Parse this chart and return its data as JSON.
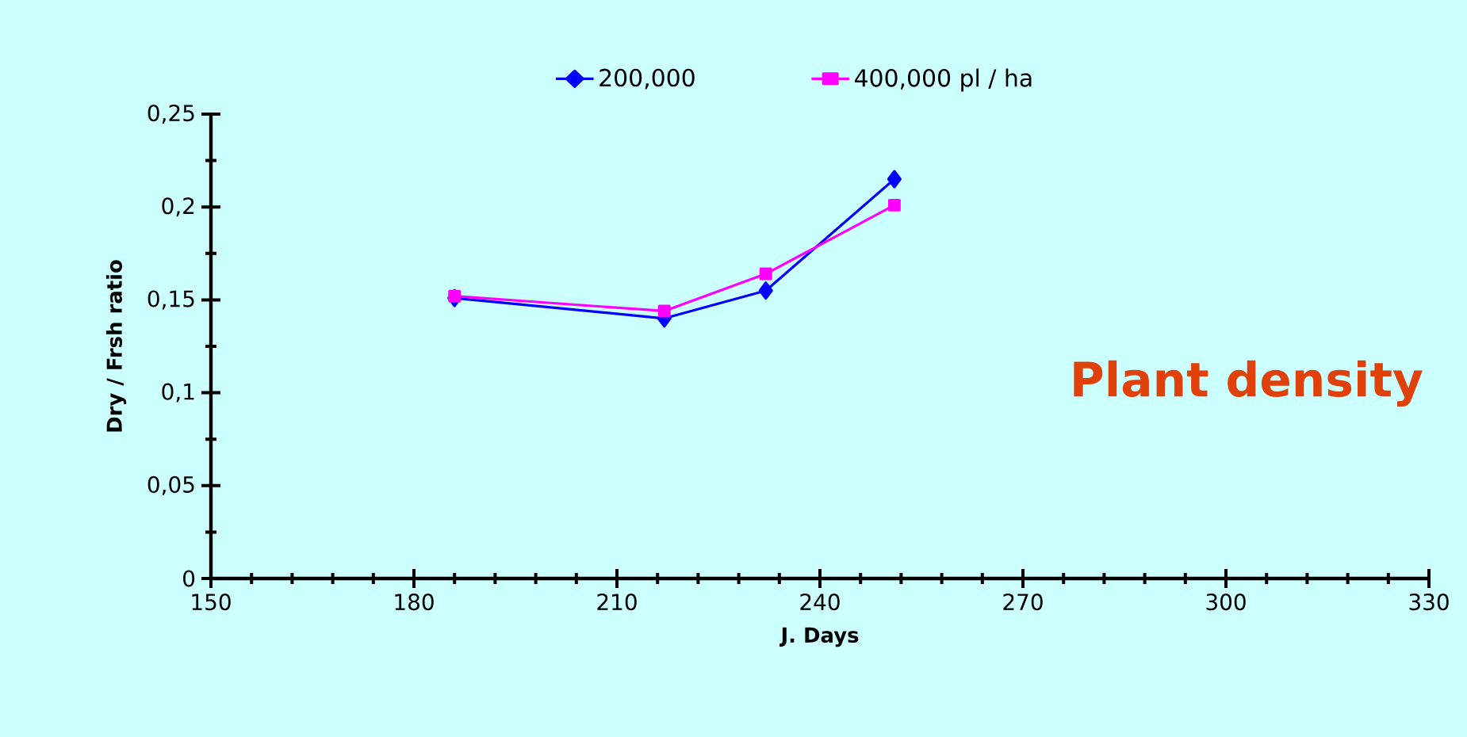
{
  "chart_data": {
    "type": "line",
    "xlabel": "J. Days",
    "ylabel": "Dry / Frsh ratio",
    "x": [
      186,
      217,
      232,
      251
    ],
    "series": [
      {
        "name": "200,000",
        "color": "#0000ff",
        "marker": "diamond",
        "values": [
          0.151,
          0.14,
          0.155,
          0.215
        ]
      },
      {
        "name": "400,000 pl / ha",
        "color": "#ff00ff",
        "marker": "square",
        "values": [
          0.152,
          0.144,
          0.164,
          0.201
        ]
      }
    ],
    "xlim": [
      150,
      330
    ],
    "xticks": [
      150,
      180,
      210,
      240,
      270,
      300,
      330
    ],
    "ylim": [
      0,
      0.25
    ],
    "yticks": [
      0,
      {
        "value": 0.05,
        "label": "0,05"
      },
      {
        "value": 0.1,
        "label": "0,1"
      },
      {
        "value": 0.15,
        "label": "0,15"
      },
      {
        "value": 0.2,
        "label": "0,2"
      },
      {
        "value": 0.25,
        "label": "0,25"
      }
    ],
    "annotations": [
      "Plant density"
    ],
    "legend": "top",
    "grid": false,
    "line_style": "solid"
  }
}
